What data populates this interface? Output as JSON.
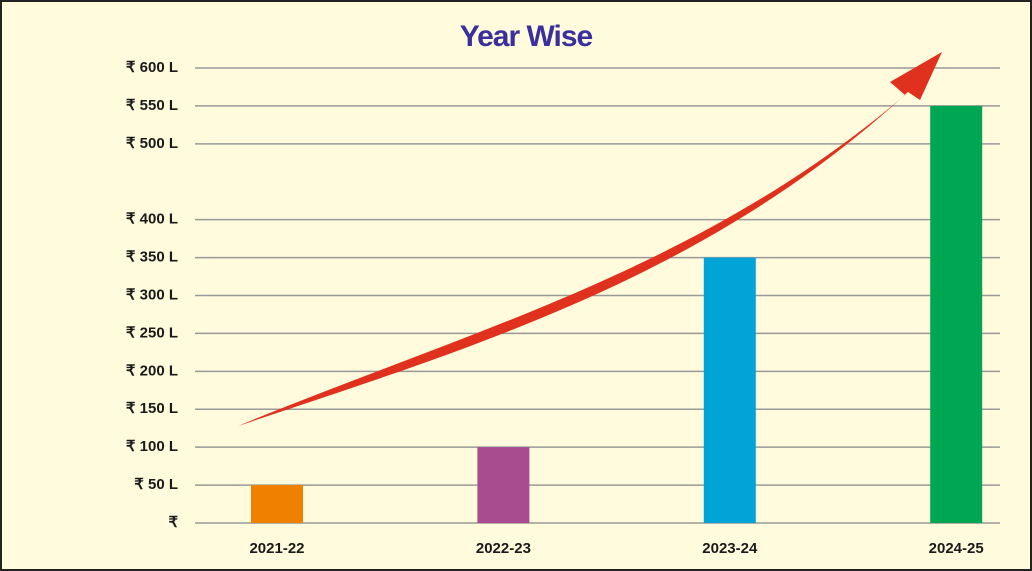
{
  "chart_data": {
    "type": "bar",
    "title": "Year Wise",
    "categories": [
      "2021-22",
      "2022-23",
      "2023-24",
      "2024-25"
    ],
    "values": [
      50,
      100,
      350,
      550
    ],
    "colors": [
      "#f08000",
      "#a84b8f",
      "#00a4d6",
      "#00a651"
    ],
    "ylim": [
      0,
      600
    ],
    "yticks": [
      {
        "value": 0,
        "label": "₹"
      },
      {
        "value": 50,
        "label": "₹ 50 L"
      },
      {
        "value": 100,
        "label": "₹ 100 L"
      },
      {
        "value": 150,
        "label": "₹ 150 L"
      },
      {
        "value": 200,
        "label": "₹ 200 L"
      },
      {
        "value": 250,
        "label": "₹ 250 L"
      },
      {
        "value": 300,
        "label": "₹ 300 L"
      },
      {
        "value": 350,
        "label": "₹ 350 L"
      },
      {
        "value": 400,
        "label": "₹ 400 L"
      },
      {
        "value": 500,
        "label": "₹ 500 L"
      },
      {
        "value": 550,
        "label": "₹ 550 L"
      },
      {
        "value": 600,
        "label": "₹ 600 L"
      }
    ],
    "grid": true
  }
}
